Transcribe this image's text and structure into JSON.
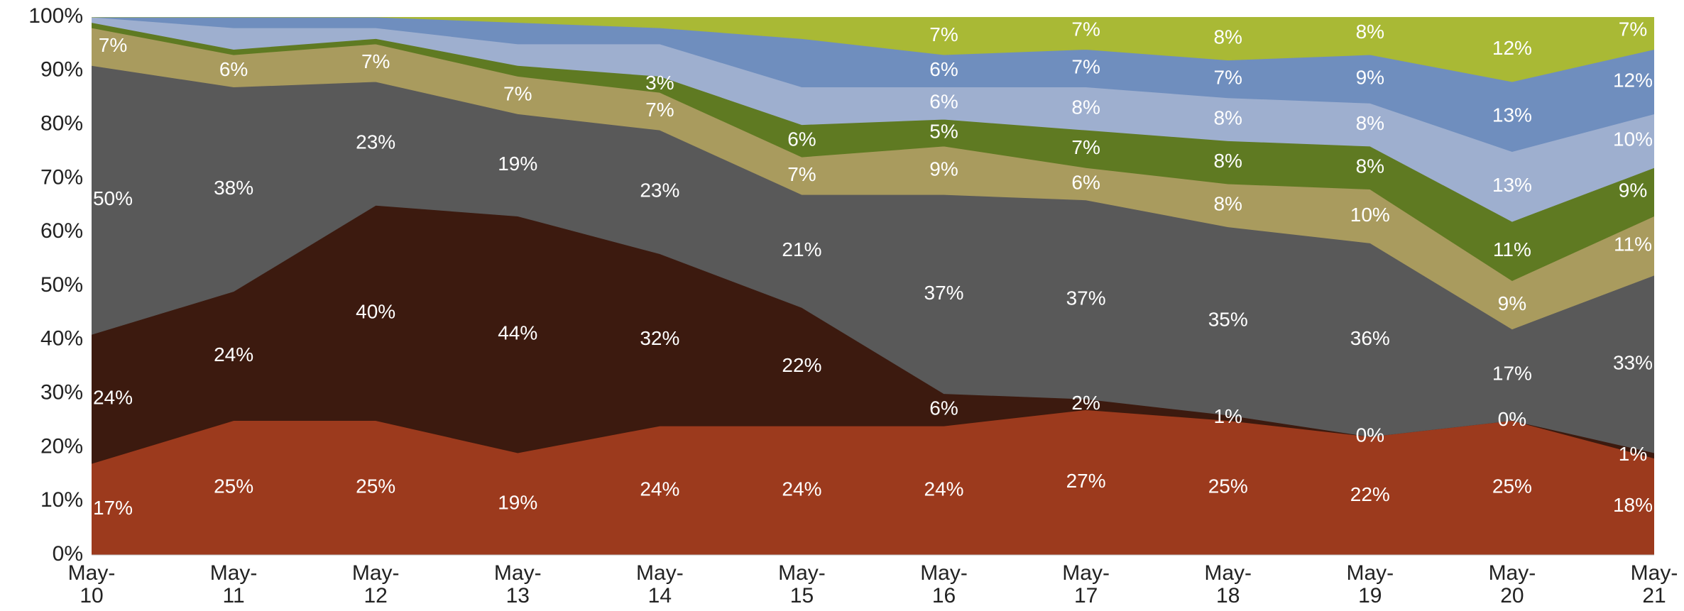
{
  "chart_data": {
    "type": "stacked_area_percent",
    "categories": [
      "May-10",
      "May-11",
      "May-12",
      "May-13",
      "May-14",
      "May-15",
      "May-16",
      "May-17",
      "May-18",
      "May-19",
      "May-20",
      "May-21"
    ],
    "ylim": [
      0,
      100
    ],
    "yticks": [
      {
        "value": 0,
        "label": "0%"
      },
      {
        "value": 10,
        "label": "10%"
      },
      {
        "value": 20,
        "label": "20%"
      },
      {
        "value": 30,
        "label": "30%"
      },
      {
        "value": 40,
        "label": "40%"
      },
      {
        "value": 50,
        "label": "50%"
      },
      {
        "value": 60,
        "label": "60%"
      },
      {
        "value": 70,
        "label": "70%"
      },
      {
        "value": 80,
        "label": "80%"
      },
      {
        "value": 90,
        "label": "90%"
      },
      {
        "value": 100,
        "label": "100%"
      }
    ],
    "series": [
      {
        "color": "#9c3a1d",
        "values": [
          17,
          25,
          25,
          19,
          24,
          24,
          24,
          27,
          25,
          22,
          25,
          18
        ],
        "value_labels": [
          "17%",
          "25%",
          "25%",
          "19%",
          "24%",
          "24%",
          "24%",
          "27%",
          "25%",
          "22%",
          "25%",
          "18%"
        ]
      },
      {
        "color": "#3c1a0f",
        "values": [
          24,
          24,
          40,
          44,
          32,
          22,
          6,
          2,
          1,
          0,
          0,
          1
        ],
        "value_labels": [
          "24%",
          "24%",
          "40%",
          "44%",
          "32%",
          "22%",
          "6%",
          "2%",
          "1%",
          "0%",
          "0%",
          "1%"
        ]
      },
      {
        "color": "#595959",
        "values": [
          50,
          38,
          23,
          19,
          23,
          21,
          37,
          37,
          35,
          36,
          17,
          33
        ],
        "value_labels": [
          "50%",
          "38%",
          "23%",
          "19%",
          "23%",
          "21%",
          "37%",
          "37%",
          "35%",
          "36%",
          "17%",
          "33%"
        ]
      },
      {
        "color": "#a99b5e",
        "values": [
          7,
          6,
          7,
          7,
          7,
          7,
          9,
          6,
          8,
          10,
          9,
          11
        ],
        "value_labels": [
          "7%",
          "6%",
          "7%",
          "7%",
          "7%",
          "7%",
          "9%",
          "6%",
          "8%",
          "10%",
          "9%",
          "11%"
        ]
      },
      {
        "color": "#5f7a22",
        "values": [
          1,
          1,
          1,
          2,
          3,
          6,
          5,
          7,
          8,
          8,
          11,
          9
        ],
        "value_labels": [
          null,
          null,
          null,
          null,
          "3%",
          "6%",
          "5%",
          "7%",
          "8%",
          "8%",
          "11%",
          "9%"
        ]
      },
      {
        "color": "#9eafcf",
        "values": [
          1,
          4,
          2,
          4,
          6,
          7,
          6,
          8,
          8,
          8,
          13,
          10
        ],
        "value_labels": [
          null,
          null,
          null,
          null,
          null,
          null,
          "6%",
          "8%",
          "8%",
          "8%",
          "13%",
          "10%"
        ]
      },
      {
        "color": "#6f8ebe",
        "values": [
          0,
          2,
          2,
          4,
          3,
          9,
          6,
          7,
          7,
          9,
          13,
          12
        ],
        "value_labels": [
          null,
          null,
          null,
          null,
          null,
          null,
          "6%",
          "7%",
          "7%",
          "9%",
          "13%",
          "12%"
        ]
      },
      {
        "color": "#a9b935",
        "values": [
          0,
          0,
          0,
          1,
          2,
          4,
          7,
          7,
          8,
          8,
          12,
          7
        ],
        "value_labels": [
          null,
          null,
          null,
          null,
          null,
          null,
          "7%",
          "7%",
          "8%",
          "8%",
          "12%",
          "7%"
        ]
      }
    ]
  }
}
